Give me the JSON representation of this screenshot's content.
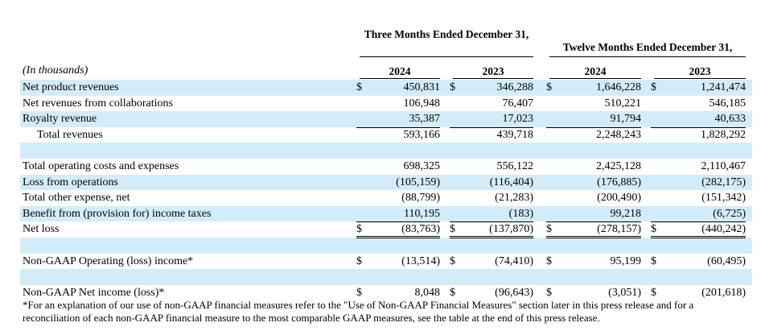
{
  "header": {
    "three_months": "Three Months Ended December 31,",
    "twelve_months": "Twelve Months Ended December 31,",
    "units": "(In thousands)",
    "years": [
      "2024",
      "2023",
      "2024",
      "2023"
    ],
    "currency": "$"
  },
  "rows": [
    {
      "label": "Net product revenues",
      "dollar": true,
      "values": [
        "450,831",
        "346,288",
        "1,646,228",
        "1,241,474"
      ]
    },
    {
      "label": "Net revenues from collaborations",
      "values": [
        "106,948",
        "76,407",
        "510,221",
        "546,185"
      ]
    },
    {
      "label": "Royalty revenue",
      "values": [
        "35,387",
        "17,023",
        "91,794",
        "40,633"
      ]
    },
    {
      "label": "Total revenues",
      "values": [
        "593,166",
        "439,718",
        "2,248,243",
        "1,828,292"
      ]
    },
    {
      "label": "Total operating costs and expenses",
      "values": [
        "698,325",
        "556,122",
        "2,425,128",
        "2,110,467"
      ]
    },
    {
      "label": "Loss from operations",
      "values": [
        "(105,159)",
        "(116,404)",
        "(176,885)",
        "(282,175)"
      ]
    },
    {
      "label": "Total other expense, net",
      "values": [
        "(88,799)",
        "(21,283)",
        "(200,490)",
        "(151,342)"
      ]
    },
    {
      "label": "Benefit from (provision for) income taxes",
      "values": [
        "110,195",
        "(183)",
        "99,218",
        "(6,725)"
      ]
    },
    {
      "label": "Net loss",
      "dollar": true,
      "values": [
        "(83,763)",
        "(137,870)",
        "(278,157)",
        "(440,242)"
      ]
    },
    {
      "label": "Non-GAAP Operating (loss) income*",
      "dollar": true,
      "values": [
        "(13,514)",
        "(74,410)",
        "95,199",
        "(60,495)"
      ]
    },
    {
      "label": "Non-GAAP Net income (loss)*",
      "dollar": true,
      "values": [
        "8,048",
        "(96,643)",
        "(3,051)",
        "(201,618)"
      ]
    }
  ],
  "footnote": "*For an explanation of our use of non-GAAP financial measures refer to the \"Use of Non-GAAP Financial Measures\" section later in this press release and for a reconciliation of each non-GAAP financial measure to the most comparable GAAP measures, see the table at the end of this press release."
}
